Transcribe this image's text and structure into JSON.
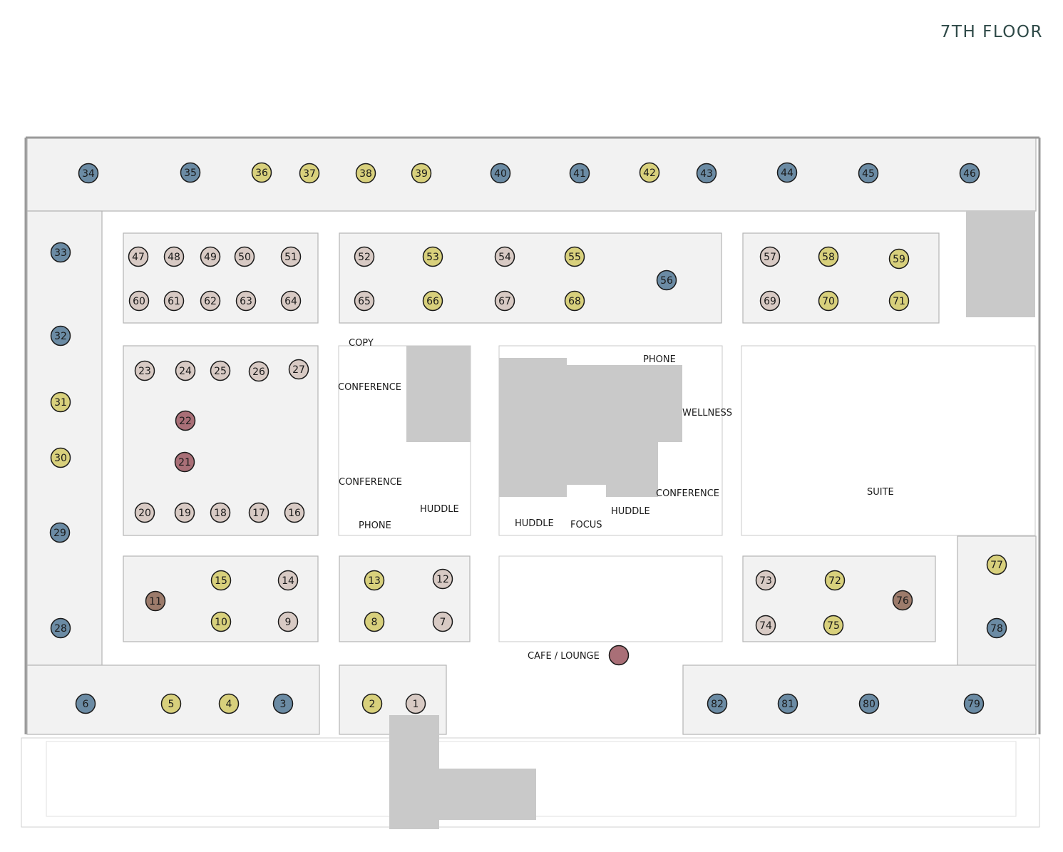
{
  "title": "7TH FLOOR",
  "colors": {
    "blue": "#6b8ba4",
    "yellow": "#d8d07c",
    "beige": "#d8cac4",
    "red": "#a96f77",
    "brown": "#9c7b6b"
  },
  "room_labels": [
    "COPY",
    "CONFERENCE",
    "CONFERENCE",
    "HUDDLE",
    "PHONE",
    "PHONE",
    "WELLNESS",
    "CONFERENCE",
    "HUDDLE",
    "FOCUS",
    "HUDDLE",
    "SUITE",
    "CAFE / LOUNGE"
  ],
  "markers": [
    {
      "n": "34",
      "c": "blue"
    },
    {
      "n": "35",
      "c": "blue"
    },
    {
      "n": "36",
      "c": "yellow"
    },
    {
      "n": "37",
      "c": "yellow"
    },
    {
      "n": "38",
      "c": "yellow"
    },
    {
      "n": "39",
      "c": "yellow"
    },
    {
      "n": "40",
      "c": "blue"
    },
    {
      "n": "41",
      "c": "blue"
    },
    {
      "n": "42",
      "c": "yellow"
    },
    {
      "n": "43",
      "c": "blue"
    },
    {
      "n": "44",
      "c": "blue"
    },
    {
      "n": "45",
      "c": "blue"
    },
    {
      "n": "46",
      "c": "blue"
    },
    {
      "n": "33",
      "c": "blue"
    },
    {
      "n": "32",
      "c": "blue"
    },
    {
      "n": "31",
      "c": "yellow"
    },
    {
      "n": "30",
      "c": "yellow"
    },
    {
      "n": "29",
      "c": "blue"
    },
    {
      "n": "28",
      "c": "blue"
    },
    {
      "n": "47",
      "c": "beige"
    },
    {
      "n": "48",
      "c": "beige"
    },
    {
      "n": "49",
      "c": "beige"
    },
    {
      "n": "50",
      "c": "beige"
    },
    {
      "n": "51",
      "c": "beige"
    },
    {
      "n": "60",
      "c": "beige"
    },
    {
      "n": "61",
      "c": "beige"
    },
    {
      "n": "62",
      "c": "beige"
    },
    {
      "n": "63",
      "c": "beige"
    },
    {
      "n": "64",
      "c": "beige"
    },
    {
      "n": "52",
      "c": "beige"
    },
    {
      "n": "53",
      "c": "yellow"
    },
    {
      "n": "54",
      "c": "beige"
    },
    {
      "n": "55",
      "c": "yellow"
    },
    {
      "n": "65",
      "c": "beige"
    },
    {
      "n": "66",
      "c": "yellow"
    },
    {
      "n": "67",
      "c": "beige"
    },
    {
      "n": "68",
      "c": "yellow"
    },
    {
      "n": "56",
      "c": "blue"
    },
    {
      "n": "57",
      "c": "beige"
    },
    {
      "n": "58",
      "c": "yellow"
    },
    {
      "n": "59",
      "c": "yellow"
    },
    {
      "n": "69",
      "c": "beige"
    },
    {
      "n": "70",
      "c": "yellow"
    },
    {
      "n": "71",
      "c": "yellow"
    },
    {
      "n": "23",
      "c": "beige"
    },
    {
      "n": "24",
      "c": "beige"
    },
    {
      "n": "25",
      "c": "beige"
    },
    {
      "n": "26",
      "c": "beige"
    },
    {
      "n": "27",
      "c": "beige"
    },
    {
      "n": "22",
      "c": "red"
    },
    {
      "n": "21",
      "c": "red"
    },
    {
      "n": "20",
      "c": "beige"
    },
    {
      "n": "19",
      "c": "beige"
    },
    {
      "n": "18",
      "c": "beige"
    },
    {
      "n": "17",
      "c": "beige"
    },
    {
      "n": "16",
      "c": "beige"
    },
    {
      "n": "11",
      "c": "brown"
    },
    {
      "n": "15",
      "c": "yellow"
    },
    {
      "n": "10",
      "c": "yellow"
    },
    {
      "n": "14",
      "c": "beige"
    },
    {
      "n": "9",
      "c": "beige"
    },
    {
      "n": "13",
      "c": "yellow"
    },
    {
      "n": "8",
      "c": "yellow"
    },
    {
      "n": "12",
      "c": "beige"
    },
    {
      "n": "7",
      "c": "beige"
    },
    {
      "n": "73",
      "c": "beige"
    },
    {
      "n": "74",
      "c": "beige"
    },
    {
      "n": "72",
      "c": "yellow"
    },
    {
      "n": "75",
      "c": "yellow"
    },
    {
      "n": "76",
      "c": "brown"
    },
    {
      "n": "77",
      "c": "yellow"
    },
    {
      "n": "78",
      "c": "blue"
    },
    {
      "n": "6",
      "c": "blue"
    },
    {
      "n": "5",
      "c": "yellow"
    },
    {
      "n": "4",
      "c": "yellow"
    },
    {
      "n": "3",
      "c": "blue"
    },
    {
      "n": "2",
      "c": "yellow"
    },
    {
      "n": "1",
      "c": "beige"
    },
    {
      "n": "82",
      "c": "blue"
    },
    {
      "n": "81",
      "c": "blue"
    },
    {
      "n": "80",
      "c": "blue"
    },
    {
      "n": "79",
      "c": "blue"
    },
    {
      "n": "",
      "c": "red"
    }
  ]
}
